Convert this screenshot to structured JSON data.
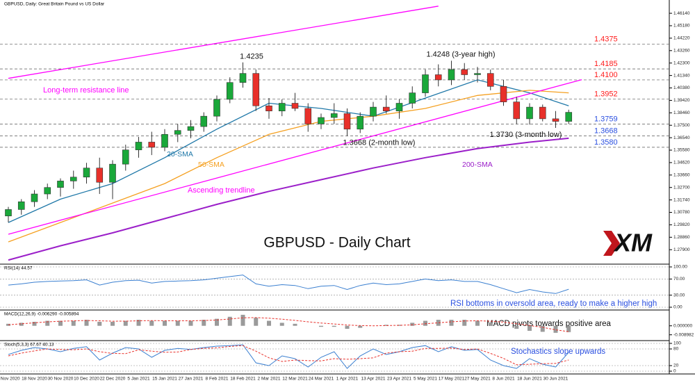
{
  "header": "GBPUSD, Daily: Great Britain Pound vs US Dollar",
  "logo": "XM",
  "chart_data": [
    {
      "type": "candlestick",
      "title": "GBPUSD - Daily Chart",
      "categories": [
        "6 Nov 2020",
        null,
        "18 Nov 2020",
        null,
        "30 Nov 2020",
        null,
        "10 Dec 2020",
        null,
        "22 Dec 2020",
        null,
        "5 Jan 2021",
        null,
        "15 Jan 2021",
        null,
        "27 Jan 2021",
        null,
        "8 Feb 2021",
        null,
        "18 Feb 2021",
        null,
        "2 Mar 2021",
        null,
        "12 Mar 2021",
        null,
        "24 Mar 2021",
        null,
        "1 Apr 2021",
        null,
        "13 Apr 2021",
        null,
        "23 Apr 2021",
        null,
        "5 May 2021",
        null,
        "17 May 2021",
        null,
        "27 May 2021",
        null,
        "8 Jun 2021",
        null,
        "18 Jun 2021",
        null,
        "30 Jun 2021",
        null
      ],
      "open": [
        1.305,
        1.31,
        1.316,
        1.322,
        1.327,
        1.332,
        1.335,
        1.342,
        1.331,
        1.345,
        1.356,
        1.362,
        1.358,
        1.368,
        1.371,
        1.374,
        1.382,
        1.395,
        1.408,
        1.415,
        1.39,
        1.386,
        1.392,
        1.388,
        1.376,
        1.381,
        1.384,
        1.372,
        1.382,
        1.389,
        1.386,
        1.392,
        1.4,
        1.414,
        1.41,
        1.418,
        1.414,
        1.415,
        1.405,
        1.393,
        1.38,
        1.389,
        1.38,
        1.378
      ],
      "high": [
        1.312,
        1.318,
        1.325,
        1.33,
        1.334,
        1.34,
        1.346,
        1.35,
        1.348,
        1.36,
        1.366,
        1.37,
        1.372,
        1.376,
        1.379,
        1.385,
        1.398,
        1.412,
        1.4235,
        1.418,
        1.396,
        1.395,
        1.4,
        1.392,
        1.384,
        1.392,
        1.388,
        1.385,
        1.393,
        1.398,
        1.395,
        1.405,
        1.418,
        1.422,
        1.4248,
        1.423,
        1.42,
        1.418,
        1.41,
        1.397,
        1.392,
        1.391,
        1.386,
        1.387
      ],
      "low": [
        1.3,
        1.306,
        1.312,
        1.318,
        1.32,
        1.326,
        1.33,
        1.322,
        1.318,
        1.34,
        1.35,
        1.352,
        1.355,
        1.362,
        1.365,
        1.37,
        1.378,
        1.392,
        1.404,
        1.386,
        1.38,
        1.382,
        1.386,
        1.37,
        1.372,
        1.376,
        1.3668,
        1.369,
        1.378,
        1.384,
        1.38,
        1.388,
        1.397,
        1.405,
        1.406,
        1.41,
        1.408,
        1.402,
        1.39,
        1.376,
        1.3755,
        1.378,
        1.373,
        1.376
      ],
      "close": [
        1.31,
        1.316,
        1.322,
        1.327,
        1.332,
        1.335,
        1.342,
        1.331,
        1.345,
        1.356,
        1.362,
        1.358,
        1.368,
        1.371,
        1.374,
        1.382,
        1.395,
        1.408,
        1.415,
        1.39,
        1.386,
        1.392,
        1.388,
        1.376,
        1.381,
        1.384,
        1.372,
        1.382,
        1.389,
        1.386,
        1.392,
        1.4,
        1.414,
        1.41,
        1.418,
        1.414,
        1.415,
        1.405,
        1.393,
        1.38,
        1.389,
        1.38,
        1.378,
        1.385
      ],
      "up_color": "#1aa83a",
      "down_color": "#e8302a",
      "ylim": [
        1.27,
        1.4695
      ],
      "yticks": [
        {
          "value": 1.279,
          "label": "1.27900"
        },
        {
          "value": 1.2886,
          "label": "1.28860"
        },
        {
          "value": 1.2982,
          "label": "1.29820"
        },
        {
          "value": 1.3078,
          "label": "1.30780"
        },
        {
          "value": 1.3174,
          "label": "1.31740"
        },
        {
          "value": 1.327,
          "label": "1.32700"
        },
        {
          "value": 1.3366,
          "label": "1.33660"
        },
        {
          "value": 1.3462,
          "label": "1.34620"
        },
        {
          "value": 1.3558,
          "label": "1.35580"
        },
        {
          "value": 1.3654,
          "label": "1.36540"
        },
        {
          "value": 1.375,
          "label": "1.37500"
        },
        {
          "value": 1.3846,
          "label": "1.38460"
        },
        {
          "value": 1.3942,
          "label": "1.39420"
        },
        {
          "value": 1.4038,
          "label": "1.40380"
        },
        {
          "value": 1.4134,
          "label": "1.41340"
        },
        {
          "value": 1.423,
          "label": "1.42300"
        },
        {
          "value": 1.4326,
          "label": "1.43260"
        },
        {
          "value": 1.4422,
          "label": "1.44220"
        },
        {
          "value": 1.4518,
          "label": "1.45180"
        },
        {
          "value": 1.4614,
          "label": "1.46140"
        }
      ],
      "levels": [
        {
          "value": 1.4375,
          "color": "#ff1a1a"
        },
        {
          "value": 1.4185,
          "color": "#ff1a1a"
        },
        {
          "value": {
            "value": 1.41,
            "label": "1.4100"
          },
          "color": "#ff1a1a"
        },
        {
          "value": 1.3952,
          "color": "#ff1a1a"
        },
        {
          "value": 1.3759,
          "color": "#2a4fe0"
        },
        {
          "value": 1.3668,
          "color": "#2a4fe0"
        },
        {
          "value": {
            "value": 1.358,
            "label": "1.3580"
          },
          "color": "#2a4fe0"
        }
      ],
      "lines": [
        {
          "name": "20-SMA",
          "color": "#1f78a8",
          "x": [
            0,
            4,
            8,
            12,
            16,
            20,
            24,
            28,
            32,
            36,
            40,
            43
          ],
          "values": [
            1.3,
            1.318,
            1.33,
            1.35,
            1.372,
            1.392,
            1.388,
            1.382,
            1.396,
            1.41,
            1.4,
            1.39
          ]
        },
        {
          "name": "50-SMA",
          "color": "#f5a020",
          "x": [
            0,
            4,
            8,
            12,
            16,
            20,
            24,
            28,
            32,
            36,
            40,
            43
          ],
          "values": [
            1.285,
            1.3,
            1.315,
            1.33,
            1.35,
            1.368,
            1.378,
            1.382,
            1.388,
            1.398,
            1.402,
            1.4
          ]
        },
        {
          "name": "200-SMA",
          "color": "#9b1fc9",
          "x": [
            0,
            4,
            8,
            12,
            16,
            20,
            24,
            28,
            32,
            36,
            40,
            43
          ],
          "values": [
            1.271,
            1.282,
            1.292,
            1.303,
            1.314,
            1.324,
            1.333,
            1.342,
            1.35,
            1.357,
            1.362,
            1.365
          ]
        },
        {
          "name": "Long-term resistance line",
          "color": "#ff00ff",
          "x": [
            0,
            33
          ],
          "values": [
            1.4112,
            1.4669
          ]
        },
        {
          "name": "Ascending trendline",
          "color": "#ff00ff",
          "x": [
            0,
            44
          ],
          "values": [
            1.2909,
            1.4102
          ]
        }
      ],
      "annotations": [
        "1.4248 (3-year high)",
        "1.3668 (2-month low)",
        "1.3730 (3-month low)"
      ]
    },
    {
      "type": "line",
      "title": "RSI(14) 44.57",
      "annotation": "RSI bottoms in oversold area, ready to make a higher high",
      "series": [
        {
          "color": "#3a7fd0",
          "values": [
            55,
            58,
            62,
            64,
            65,
            66,
            68,
            55,
            62,
            66,
            67,
            60,
            64,
            65,
            66,
            68,
            72,
            76,
            80,
            58,
            52,
            56,
            54,
            46,
            52,
            54,
            44,
            54,
            60,
            56,
            58,
            64,
            70,
            66,
            68,
            64,
            64,
            56,
            46,
            36,
            44,
            38,
            34,
            44.57
          ]
        }
      ],
      "ylim": [
        0,
        100
      ],
      "yticks": [
        {
          "value": 100,
          "label": "100.00"
        },
        {
          "value": 70,
          "label": "70.00"
        },
        {
          "value": 30,
          "label": "30.00"
        },
        {
          "value": 0,
          "label": "0.00"
        }
      ],
      "grid": true
    },
    {
      "type": "macd",
      "title": "MACD(12,26,9) -0.006290 -0.005894",
      "annotation": "MACD pivots towards positive area",
      "values": [
        0.002,
        0.003,
        0.004,
        0.005,
        0.005,
        0.005,
        0.006,
        0.004,
        0.004,
        0.005,
        0.006,
        0.005,
        0.005,
        0.005,
        0.005,
        0.006,
        0.007,
        0.009,
        0.011,
        0.008,
        0.005,
        0.003,
        0.002,
        0.0,
        -0.001,
        -0.001,
        -0.003,
        -0.002,
        0.0,
        0.001,
        0.001,
        0.003,
        0.005,
        0.006,
        0.006,
        0.006,
        0.005,
        0.003,
        0.0,
        -0.003,
        -0.005,
        -0.006,
        -0.007,
        -0.00629
      ],
      "color": "#9a9a9a",
      "signal": {
        "color": "#e8302a",
        "values": [
          0.001,
          0.002,
          0.003,
          0.004,
          0.0045,
          0.005,
          0.0053,
          0.005,
          0.0046,
          0.0047,
          0.005,
          0.0052,
          0.0051,
          0.005,
          0.005,
          0.0053,
          0.0058,
          0.0068,
          0.008,
          0.0082,
          0.0076,
          0.0066,
          0.0054,
          0.004,
          0.0028,
          0.0018,
          0.0008,
          0.0002,
          0.0,
          0.0002,
          0.0005,
          0.001,
          0.002,
          0.003,
          0.004,
          0.0048,
          0.005,
          0.0047,
          0.0037,
          0.002,
          0.0003,
          -0.0015,
          -0.004,
          -0.005894
        ]
      },
      "ylim": [
        -0.012,
        0.013
      ],
      "yticks": [
        {
          "value": 0,
          "label": "0.000000"
        },
        -0.008982
      ]
    },
    {
      "type": "line",
      "title": "Stoch(5,3,3) 67.67 40.13",
      "annotation": "Stochastics slope upwards",
      "series": [
        {
          "color": "#3a7fd0",
          "values": [
            60,
            75,
            85,
            80,
            70,
            82,
            88,
            40,
            65,
            85,
            80,
            50,
            75,
            82,
            78,
            85,
            90,
            92,
            95,
            30,
            20,
            55,
            45,
            15,
            50,
            70,
            10,
            55,
            80,
            60,
            70,
            85,
            92,
            70,
            88,
            75,
            78,
            40,
            20,
            10,
            45,
            25,
            15,
            67.67
          ]
        },
        {
          "color": "#e8302a",
          "dashed": true,
          "values": [
            55,
            65,
            73,
            80,
            78,
            77,
            80,
            70,
            64,
            63,
            77,
            72,
            68,
            69,
            78,
            82,
            84,
            89,
            92,
            72,
            48,
            35,
            40,
            38,
            37,
            45,
            43,
            45,
            48,
            65,
            70,
            72,
            82,
            82,
            83,
            78,
            80,
            64,
            46,
            23,
            25,
            27,
            28,
            40.13
          ]
        }
      ],
      "ylim": [
        0,
        100
      ],
      "yticks": [
        100,
        80,
        20,
        0
      ],
      "grid": true
    }
  ]
}
